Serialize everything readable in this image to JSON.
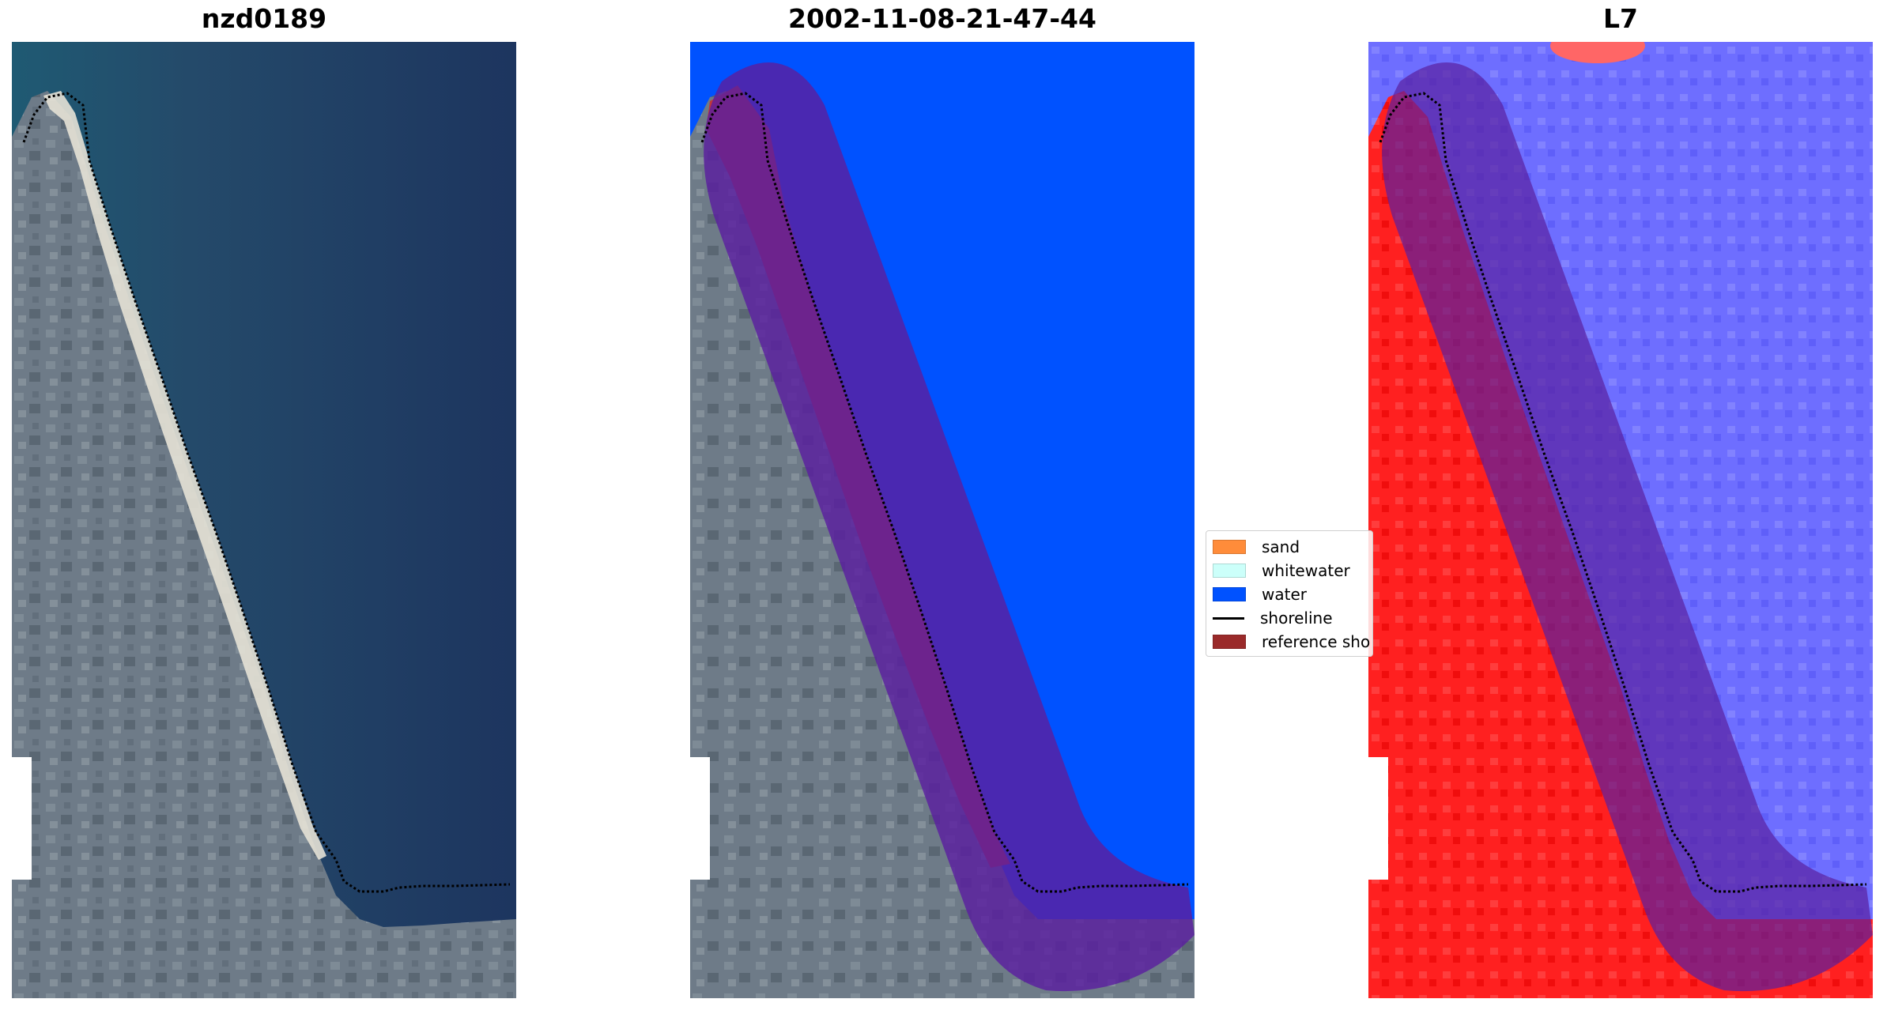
{
  "panels": [
    {
      "title": "nzd0189"
    },
    {
      "title": "2002-11-08-21-47-44"
    },
    {
      "title": "L7"
    }
  ],
  "legend": {
    "items": [
      {
        "label": "sand",
        "color": "#ff8c3a"
      },
      {
        "label": "whitewater",
        "color": "#ccfffa"
      },
      {
        "label": "water",
        "color": "#0052ff"
      },
      {
        "label": "shoreline",
        "color": "#000000"
      },
      {
        "label": "reference sho",
        "color": "#9a2a2a"
      }
    ]
  },
  "colors": {
    "ocean": "#203f66",
    "land": "#6f7d8a",
    "sand": "#e8e4d8",
    "water_class": "#0052ff",
    "buffer_purple": "#551a8b",
    "reference_red": "#b53a3a",
    "index_red": "#ff1a1a",
    "index_blue": "#5a5aff"
  }
}
